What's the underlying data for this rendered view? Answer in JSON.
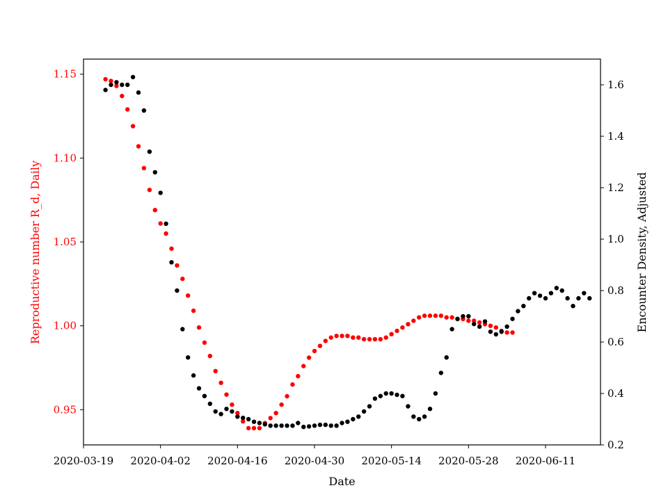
{
  "chart_data": {
    "type": "scatter",
    "xlabel": "Date",
    "ylabel_left": "Reproductive number R_d, Daily",
    "ylabel_right": "Encounter Density, Adjusted",
    "x_tick_labels": [
      "2020-03-19",
      "2020-04-02",
      "2020-04-16",
      "2020-04-30",
      "2020-05-14",
      "2020-05-28",
      "2020-06-11"
    ],
    "y_left_ticks": [
      "0.95",
      "1.00",
      "1.05",
      "1.10",
      "1.15"
    ],
    "y_right_ticks": [
      "0.2",
      "0.4",
      "0.6",
      "0.8",
      "1.0",
      "1.2",
      "1.4",
      "1.6"
    ],
    "x_range": [
      "2020-03-19",
      "2020-06-21"
    ],
    "y_left_range": [
      0.929,
      1.159
    ],
    "y_right_range": [
      0.2,
      1.7
    ],
    "colors": {
      "left_series": "#ff0000",
      "right_series": "#000000",
      "axes": "#000000"
    },
    "series": [
      {
        "axis": "left",
        "color": "#ff0000",
        "x_start": "2020-03-23",
        "y": [
          1.147,
          1.146,
          1.143,
          1.137,
          1.129,
          1.119,
          1.107,
          1.094,
          1.081,
          1.069,
          1.061,
          1.055,
          1.046,
          1.036,
          1.028,
          1.018,
          1.009,
          0.999,
          0.99,
          0.982,
          0.973,
          0.966,
          0.959,
          0.953,
          0.948,
          0.943,
          0.939,
          0.939,
          0.939,
          0.942,
          0.945,
          0.948,
          0.953,
          0.958,
          0.965,
          0.97,
          0.976,
          0.981,
          0.985,
          0.988,
          0.991,
          0.993,
          0.994,
          0.994,
          0.994,
          0.993,
          0.993,
          0.992,
          0.992,
          0.992,
          0.992,
          0.993,
          0.995,
          0.997,
          0.999,
          1.001,
          1.003,
          1.005,
          1.006,
          1.006,
          1.006,
          1.006,
          1.005,
          1.005,
          1.004,
          1.004,
          1.003,
          1.003,
          1.002,
          1.001,
          1.0,
          0.999,
          0.997,
          0.996,
          0.996
        ]
      },
      {
        "axis": "right",
        "color": "#000000",
        "x_start": "2020-03-23",
        "y": [
          1.58,
          1.6,
          1.61,
          1.6,
          1.6,
          1.63,
          1.57,
          1.5,
          1.34,
          1.26,
          1.18,
          1.06,
          0.91,
          0.8,
          0.65,
          0.54,
          0.47,
          0.42,
          0.39,
          0.36,
          0.33,
          0.32,
          0.34,
          0.33,
          0.31,
          0.305,
          0.3,
          0.29,
          0.285,
          0.28,
          0.275,
          0.275,
          0.275,
          0.275,
          0.275,
          0.285,
          0.27,
          0.272,
          0.275,
          0.278,
          0.278,
          0.275,
          0.275,
          0.285,
          0.29,
          0.3,
          0.31,
          0.33,
          0.35,
          0.38,
          0.39,
          0.4,
          0.4,
          0.395,
          0.39,
          0.35,
          0.31,
          0.3,
          0.31,
          0.34,
          0.4,
          0.48,
          0.54,
          0.65,
          0.69,
          0.7,
          0.7,
          0.67,
          0.66,
          0.68,
          0.64,
          0.63,
          0.64,
          0.66,
          0.69,
          0.72,
          0.74,
          0.77,
          0.79,
          0.78,
          0.77,
          0.79,
          0.81,
          0.8,
          0.77,
          0.74,
          0.77,
          0.79,
          0.77
        ]
      }
    ]
  }
}
